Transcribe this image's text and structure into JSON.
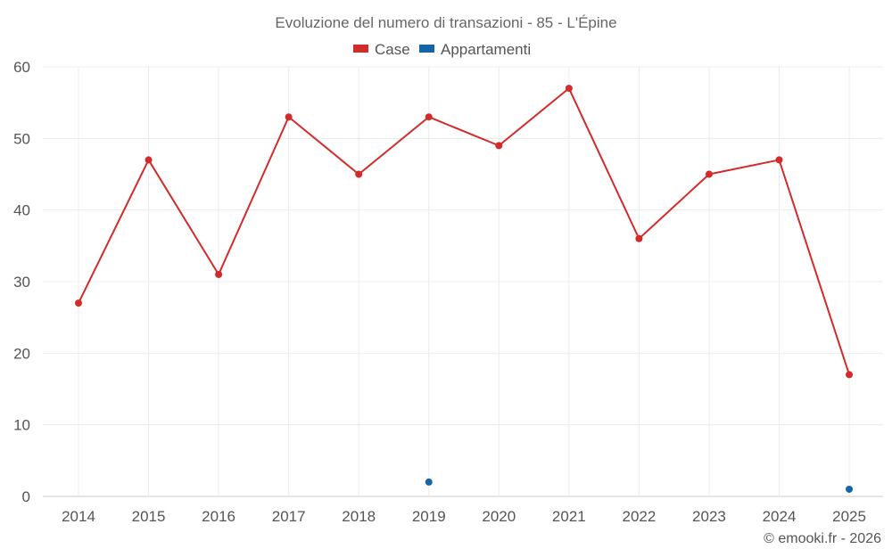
{
  "chart_data": {
    "type": "line",
    "title": "Evoluzione del numero di transazioni - 85 - L'Épine",
    "categories": [
      "2014",
      "2015",
      "2016",
      "2017",
      "2018",
      "2019",
      "2020",
      "2021",
      "2022",
      "2023",
      "2024",
      "2025"
    ],
    "series": [
      {
        "name": "Case",
        "color": "#d32a2a",
        "values": [
          27,
          47,
          31,
          53,
          45,
          53,
          49,
          57,
          36,
          45,
          47,
          17
        ]
      },
      {
        "name": "Appartamenti",
        "color": "#1565a8",
        "values": [
          null,
          null,
          null,
          null,
          null,
          2,
          null,
          null,
          null,
          null,
          null,
          1
        ]
      }
    ],
    "ylim": [
      0,
      60
    ],
    "yticks": [
      0,
      10,
      20,
      30,
      40,
      50,
      60
    ],
    "grid": true,
    "legend": "top-center"
  },
  "credit": "© emooki.fr - 2026"
}
